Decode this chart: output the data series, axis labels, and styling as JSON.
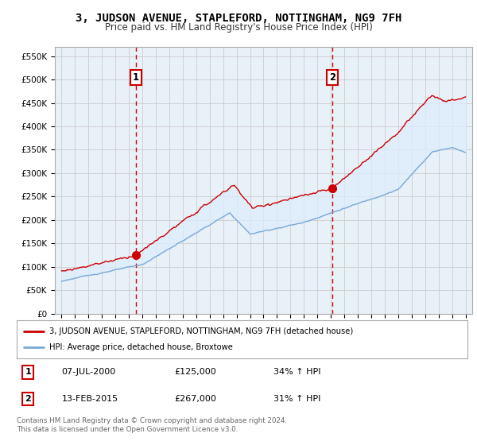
{
  "title": "3, JUDSON AVENUE, STAPLEFORD, NOTTINGHAM, NG9 7FH",
  "subtitle": "Price paid vs. HM Land Registry's House Price Index (HPI)",
  "ytick_values": [
    0,
    50000,
    100000,
    150000,
    200000,
    250000,
    300000,
    350000,
    400000,
    450000,
    500000,
    550000
  ],
  "ylim": [
    0,
    570000
  ],
  "xlim_start": 1994.5,
  "xlim_end": 2025.5,
  "xticks": [
    1995,
    1996,
    1997,
    1998,
    1999,
    2000,
    2001,
    2002,
    2003,
    2004,
    2005,
    2006,
    2007,
    2008,
    2009,
    2010,
    2011,
    2012,
    2013,
    2014,
    2015,
    2016,
    2017,
    2018,
    2019,
    2020,
    2021,
    2022,
    2023,
    2024,
    2025
  ],
  "red_line_color": "#cc0000",
  "blue_line_color": "#7aa8d4",
  "fill_color": "#ddeeff",
  "vline_color": "#cc0000",
  "bg_color": "#ffffff",
  "chart_bg_color": "#e8f0f8",
  "grid_color": "#cccccc",
  "transaction1": {
    "date_x": 2000.52,
    "price": 125000,
    "label": "1"
  },
  "transaction2": {
    "date_x": 2015.12,
    "price": 267000,
    "label": "2"
  },
  "legend_red_label": "3, JUDSON AVENUE, STAPLEFORD, NOTTINGHAM, NG9 7FH (detached house)",
  "legend_blue_label": "HPI: Average price, detached house, Broxtowe",
  "table_rows": [
    {
      "num": "1",
      "date": "07-JUL-2000",
      "price": "£125,000",
      "change": "34% ↑ HPI"
    },
    {
      "num": "2",
      "date": "13-FEB-2015",
      "price": "£267,000",
      "change": "31% ↑ HPI"
    }
  ],
  "footnote": "Contains HM Land Registry data © Crown copyright and database right 2024.\nThis data is licensed under the Open Government Licence v3.0.",
  "title_fontsize": 10,
  "subtitle_fontsize": 8.5,
  "tick_fontsize": 7.5,
  "legend_fontsize": 8
}
